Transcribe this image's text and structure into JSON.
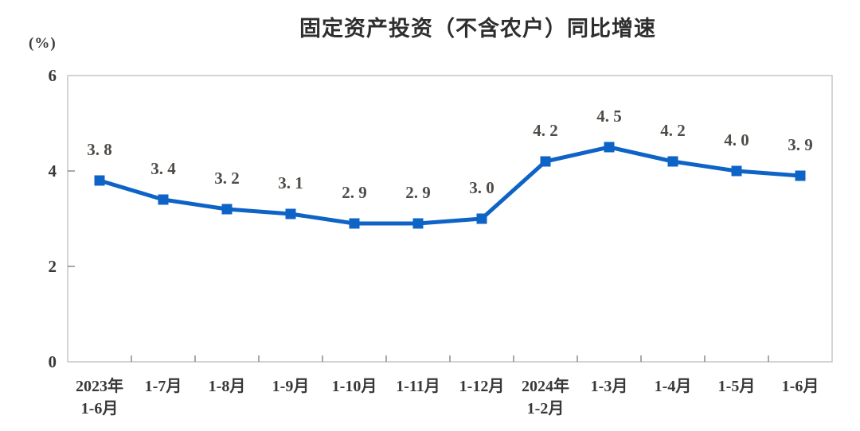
{
  "chart_data": {
    "type": "line",
    "title": "固定资产投资（不含农户）同比增速",
    "unit_label": "(%)",
    "categories": [
      [
        "2023年",
        "1-6月"
      ],
      [
        "1-7月"
      ],
      [
        "1-8月"
      ],
      [
        "1-9月"
      ],
      [
        "1-10月"
      ],
      [
        "1-11月"
      ],
      [
        "1-12月"
      ],
      [
        "2024年",
        "1-2月"
      ],
      [
        "1-3月"
      ],
      [
        "1-4月"
      ],
      [
        "1-5月"
      ],
      [
        "1-6月"
      ]
    ],
    "values": [
      3.8,
      3.4,
      3.2,
      3.1,
      2.9,
      2.9,
      3.0,
      4.2,
      4.5,
      4.2,
      4.0,
      3.9
    ],
    "point_labels": [
      "3. 8",
      "3. 4",
      "3. 2",
      "3. 1",
      "2. 9",
      "2. 9",
      "3. 0",
      "4. 2",
      "4. 5",
      "4. 2",
      "4. 0",
      "3. 9"
    ],
    "ylim": [
      0,
      6
    ],
    "yticks": [
      0,
      2,
      4,
      6
    ],
    "inner_ytick_marks": [
      2,
      4
    ],
    "grid": false,
    "legend": "none",
    "marker": "square",
    "colors": {
      "line": "#0e63c6",
      "marker": "#0e63c6",
      "border": "#c6c6c6",
      "tick": "#8a8a8a",
      "axis_label": "#383838",
      "data_label": "#4f4b47",
      "title": "#2e2e2e",
      "background": "#ffffff"
    }
  }
}
